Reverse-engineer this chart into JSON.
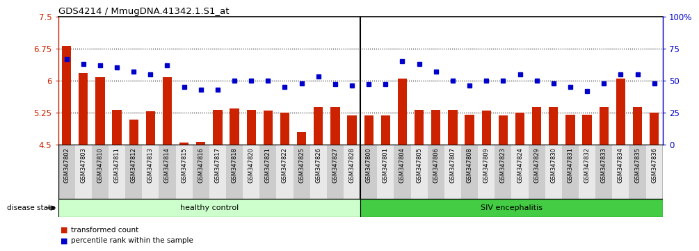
{
  "title": "GDS4214 / MmugDNA.41342.1.S1_at",
  "samples": [
    "GSM347802",
    "GSM347803",
    "GSM347810",
    "GSM347811",
    "GSM347812",
    "GSM347813",
    "GSM347814",
    "GSM347815",
    "GSM347816",
    "GSM347817",
    "GSM347818",
    "GSM347820",
    "GSM347821",
    "GSM347822",
    "GSM347825",
    "GSM347826",
    "GSM347827",
    "GSM347828",
    "GSM347800",
    "GSM347801",
    "GSM347804",
    "GSM347805",
    "GSM347806",
    "GSM347807",
    "GSM347808",
    "GSM347809",
    "GSM347823",
    "GSM347824",
    "GSM347829",
    "GSM347830",
    "GSM347831",
    "GSM347832",
    "GSM347833",
    "GSM347834",
    "GSM347835",
    "GSM347836"
  ],
  "bar_values": [
    6.82,
    6.18,
    6.08,
    5.32,
    5.08,
    5.28,
    6.08,
    4.55,
    4.57,
    5.32,
    5.35,
    5.32,
    5.3,
    5.25,
    4.8,
    5.38,
    5.38,
    5.18,
    5.18,
    5.18,
    6.05,
    5.32,
    5.32,
    5.32,
    5.2,
    5.3,
    5.18,
    5.25,
    5.38,
    5.38,
    5.2,
    5.2,
    5.38,
    6.05,
    5.38,
    5.25
  ],
  "percentile_values": [
    67,
    63,
    62,
    60,
    57,
    55,
    62,
    45,
    43,
    43,
    50,
    50,
    50,
    45,
    48,
    53,
    47,
    46,
    47,
    47,
    65,
    63,
    57,
    50,
    46,
    50,
    50,
    55,
    50,
    48,
    45,
    42,
    48,
    55,
    55,
    48
  ],
  "healthy_count": 18,
  "siv_count": 18,
  "ymin": 4.5,
  "ymax": 7.5,
  "yticks_left": [
    4.5,
    5.25,
    6.0,
    6.75,
    7.5
  ],
  "ytick_labels_left": [
    "4.5",
    "5.25",
    "6",
    "6.75",
    "7.5"
  ],
  "yticks_right": [
    0,
    25,
    50,
    75,
    100
  ],
  "ytick_labels_right": [
    "0",
    "25",
    "50",
    "75",
    "100%"
  ],
  "bar_color": "#cc2200",
  "dot_color": "#0000cc",
  "healthy_color": "#ccffcc",
  "siv_color": "#44cc44",
  "label_transformed": "transformed count",
  "label_percentile": "percentile rank within the sample",
  "disease_state_label": "disease state",
  "healthy_label": "healthy control",
  "siv_label": "SIV encephalitis",
  "dotted_yticks": [
    5.25,
    6.0,
    6.75
  ],
  "tick_bg_even": "#cccccc",
  "tick_bg_odd": "#e8e8e8"
}
